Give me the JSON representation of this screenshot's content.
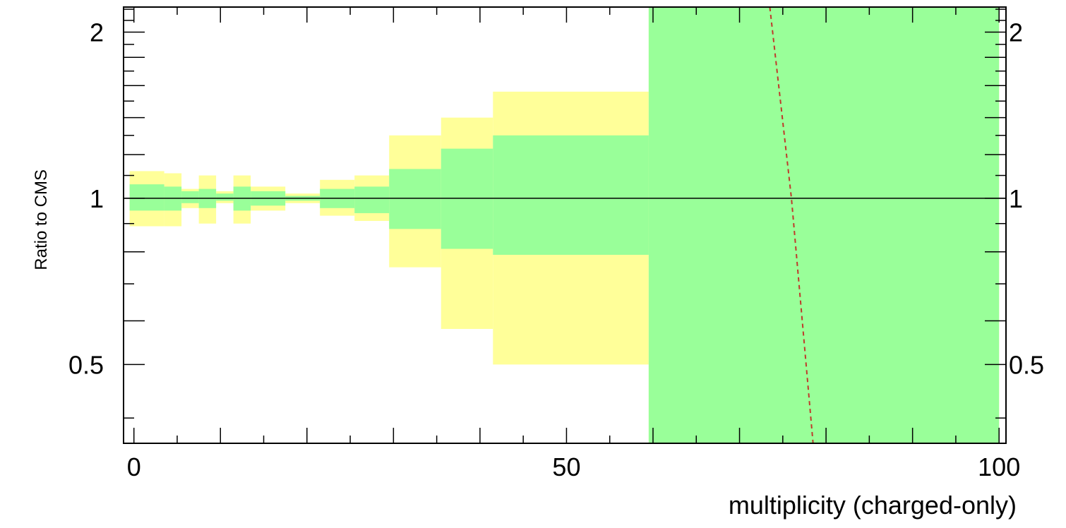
{
  "chart_data": {
    "type": "area",
    "xlabel": "multiplicity (charged-only)",
    "ylabel": "Ratio to CMS",
    "xlim": [
      -1.2,
      100.8
    ],
    "ylim": [
      0.36,
      2.22
    ],
    "y_scale": "log",
    "x_ticks": [
      0,
      50,
      100
    ],
    "x_tick_labels": [
      "0",
      "50",
      "100"
    ],
    "y_ticks": [
      0.5,
      1,
      2
    ],
    "y_tick_labels": [
      "0.5",
      "1",
      "2"
    ],
    "grid": false,
    "colors": {
      "outer_band": "#ffff99",
      "inner_band": "#99ff99",
      "reference_line": "#000000",
      "mc_line": "#c0392b"
    },
    "bands": [
      {
        "x0": -0.5,
        "x1": 3.5,
        "outer": [
          0.89,
          1.12
        ],
        "inner": [
          0.95,
          1.06
        ]
      },
      {
        "x0": 3.5,
        "x1": 5.5,
        "outer": [
          0.89,
          1.11
        ],
        "inner": [
          0.95,
          1.05
        ]
      },
      {
        "x0": 5.5,
        "x1": 7.5,
        "outer": [
          0.96,
          1.04
        ],
        "inner": [
          0.98,
          1.03
        ]
      },
      {
        "x0": 7.5,
        "x1": 9.5,
        "outer": [
          0.9,
          1.1
        ],
        "inner": [
          0.96,
          1.04
        ]
      },
      {
        "x0": 9.5,
        "x1": 11.5,
        "outer": [
          0.98,
          1.03
        ],
        "inner": [
          0.99,
          1.02
        ]
      },
      {
        "x0": 11.5,
        "x1": 13.5,
        "outer": [
          0.9,
          1.1
        ],
        "inner": [
          0.95,
          1.05
        ]
      },
      {
        "x0": 13.5,
        "x1": 17.5,
        "outer": [
          0.95,
          1.05
        ],
        "inner": [
          0.97,
          1.03
        ]
      },
      {
        "x0": 17.5,
        "x1": 21.5,
        "outer": [
          0.98,
          1.02
        ],
        "inner": [
          0.99,
          1.01
        ]
      },
      {
        "x0": 21.5,
        "x1": 25.5,
        "outer": [
          0.93,
          1.08
        ],
        "inner": [
          0.96,
          1.04
        ]
      },
      {
        "x0": 25.5,
        "x1": 29.5,
        "outer": [
          0.91,
          1.1
        ],
        "inner": [
          0.94,
          1.05
        ]
      },
      {
        "x0": 29.5,
        "x1": 35.5,
        "outer": [
          0.75,
          1.3
        ],
        "inner": [
          0.88,
          1.13
        ]
      },
      {
        "x0": 35.5,
        "x1": 41.5,
        "outer": [
          0.58,
          1.4
        ],
        "inner": [
          0.81,
          1.23
        ]
      },
      {
        "x0": 41.5,
        "x1": 59.5,
        "outer": [
          0.5,
          1.56
        ],
        "inner": [
          0.79,
          1.3
        ]
      },
      {
        "x0": 59.5,
        "x1": 100.0,
        "outer": [
          0.36,
          2.22
        ],
        "inner": [
          0.36,
          2.22
        ]
      }
    ],
    "reference_line_y": 1,
    "mc_series": {
      "x": [
        73.5,
        76.0,
        78.5
      ],
      "y": [
        2.22,
        1.0,
        0.36
      ]
    }
  }
}
